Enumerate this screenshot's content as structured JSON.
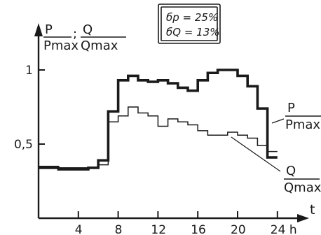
{
  "chart_data": {
    "type": "line",
    "title": "",
    "xlabel": "t",
    "x_unit": "h",
    "ylabel": {
      "num1": "P",
      "den1": "Pmax",
      "sep": ";",
      "num2": "Q",
      "den2": "Qmax"
    },
    "xlim": [
      0,
      24
    ],
    "ylim": [
      0,
      1
    ],
    "xticks": [
      4,
      8,
      12,
      16,
      20,
      24
    ],
    "xtick_labels": [
      "4",
      "8",
      "12",
      "16",
      "20",
      "24 h"
    ],
    "yticks": [
      0.5,
      1
    ],
    "ytick_labels": [
      "0,5",
      "1"
    ],
    "step": true,
    "hours": [
      0,
      1,
      2,
      3,
      4,
      5,
      6,
      7,
      8,
      9,
      10,
      11,
      12,
      13,
      14,
      15,
      16,
      17,
      18,
      19,
      20,
      21,
      22,
      23
    ],
    "series": [
      {
        "name": "P/Pmax",
        "label_num": "P",
        "label_den": "Pmax",
        "line_style": "thick",
        "values": [
          0.34,
          0.34,
          0.33,
          0.33,
          0.33,
          0.34,
          0.39,
          0.72,
          0.93,
          0.96,
          0.93,
          0.92,
          0.93,
          0.91,
          0.88,
          0.86,
          0.93,
          0.98,
          1.0,
          1.0,
          0.96,
          0.89,
          0.74,
          0.41
        ]
      },
      {
        "name": "Q/Qmax",
        "label_num": "Q",
        "label_den": "Qmax",
        "line_style": "thin",
        "values": [
          0.35,
          0.35,
          0.34,
          0.34,
          0.34,
          0.34,
          0.36,
          0.65,
          0.69,
          0.75,
          0.71,
          0.69,
          0.62,
          0.67,
          0.65,
          0.63,
          0.59,
          0.56,
          0.56,
          0.58,
          0.56,
          0.54,
          0.49,
          0.45
        ]
      }
    ],
    "annotations": {
      "sigma_p": "бp = 25%",
      "sigma_q": "бQ = 13%"
    },
    "grid": false,
    "legend": "inline"
  }
}
